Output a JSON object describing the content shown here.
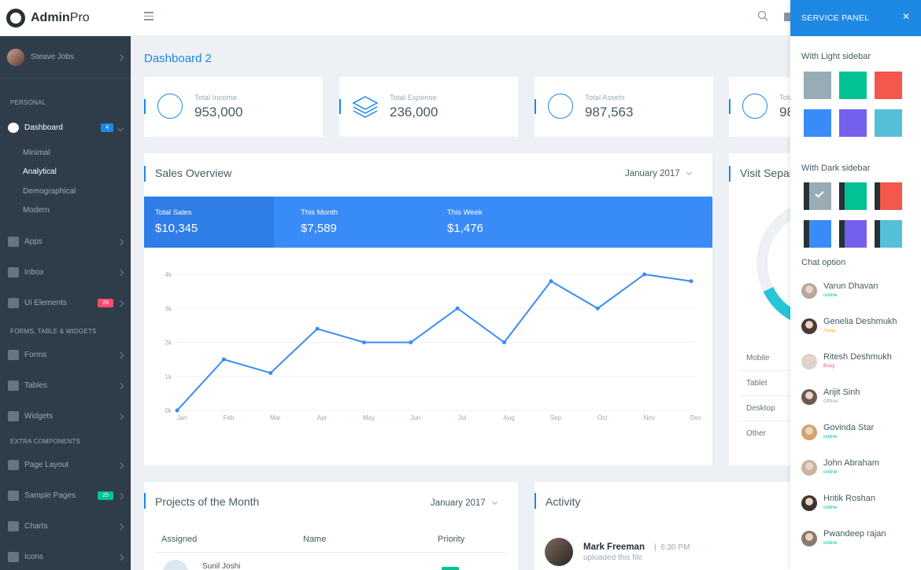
{
  "brand": {
    "name_bold": "Admin",
    "name_light": "Pro"
  },
  "sidebar": {
    "user": "Steave Jobs",
    "sections": {
      "personal": "PERSONAL",
      "forms": "FORMS, TABLE & WIDGETS",
      "extra": "EXTRA COMPONENTS"
    },
    "dashboard": {
      "label": "Dashboard",
      "badge": "4"
    },
    "sub_items": [
      "Minimal",
      "Analytical",
      "Demographical",
      "Modern"
    ],
    "items": [
      {
        "label": "Apps"
      },
      {
        "label": "Inbox"
      },
      {
        "label": "Ui Elements",
        "badge": "25"
      },
      {
        "label": "Forms"
      },
      {
        "label": "Tables"
      },
      {
        "label": "Widgets"
      },
      {
        "label": "Page Layout"
      },
      {
        "label": "Sample Pages",
        "badge": "25"
      },
      {
        "label": "Charts"
      },
      {
        "label": "Icons"
      }
    ]
  },
  "page": {
    "title": "Dashboard 2"
  },
  "stats": [
    {
      "label": "Total Income",
      "value": "953,000"
    },
    {
      "label": "Total Expense",
      "value": "236,000"
    },
    {
      "label": "Total Assets",
      "value": "987,563"
    },
    {
      "label": "Tota",
      "value": "98"
    }
  ],
  "sales": {
    "title": "Sales Overview",
    "month": "January 2017",
    "strip": [
      {
        "label": "Total Sales",
        "value": "$10,345"
      },
      {
        "label": "This Month",
        "value": "$7,589"
      },
      {
        "label": "This Week",
        "value": "$1,476"
      }
    ]
  },
  "chart_data": {
    "type": "line",
    "categories": [
      "Jan",
      "Feb",
      "Mar",
      "Apr",
      "May",
      "Jun",
      "Jul",
      "Aug",
      "Sep",
      "Oct",
      "Nov",
      "Dec"
    ],
    "series": [
      {
        "values": [
          0,
          1.5,
          1.1,
          2.4,
          2.0,
          2.0,
          3.0,
          2.0,
          3.8,
          3.0,
          4.0,
          3.8
        ]
      }
    ],
    "y_ticks": [
      "0k",
      "1k",
      "2k",
      "3k",
      "4k"
    ],
    "ylim": [
      0,
      4
    ],
    "grid": true,
    "line_color": "#398bf7"
  },
  "visit": {
    "title": "Visit Separ",
    "items": [
      "Mobile",
      "Tablet",
      "Desktop",
      "Other"
    ]
  },
  "projects": {
    "title": "Projects of the Month",
    "month": "January 2017",
    "columns": [
      "Assigned",
      "Name",
      "Priority"
    ],
    "first_row_name": "Sunil Joshi"
  },
  "activity": {
    "title": "Activity",
    "name": "Mark Freeman",
    "time": "6:30 PM",
    "text": "uploaded this file"
  },
  "service_panel": {
    "title": "SERVICE PANEL",
    "light_title": "With Light sidebar",
    "dark_title": "With Dark sidebar",
    "chat_title": "Chat option",
    "light_colors": [
      "#99abb4",
      "#00c292",
      "#f4574b",
      "#398bf7",
      "#7460ee",
      "#55bfd8"
    ],
    "dark_colors": [
      "#99abb4",
      "#00c292",
      "#f4574b",
      "#398bf7",
      "#7460ee",
      "#55bfd8"
    ],
    "chats": [
      {
        "name": "Varun Dhavan",
        "status": "online",
        "color": "#00c292"
      },
      {
        "name": "Genelia Deshmukh",
        "status": "Away",
        "color": "#ffb22b"
      },
      {
        "name": "Ritesh Deshmukh",
        "status": "Busy",
        "color": "#fc4b6c"
      },
      {
        "name": "Arijit Sinh",
        "status": "Offline",
        "color": "#99abb4"
      },
      {
        "name": "Govinda Star",
        "status": "online",
        "color": "#00c292"
      },
      {
        "name": "John Abraham",
        "status": "online",
        "color": "#00c292"
      },
      {
        "name": "Hritik Roshan",
        "status": "online",
        "color": "#00c292"
      },
      {
        "name": "Pwandeep rajan",
        "status": "online",
        "color": "#00c292"
      }
    ]
  }
}
